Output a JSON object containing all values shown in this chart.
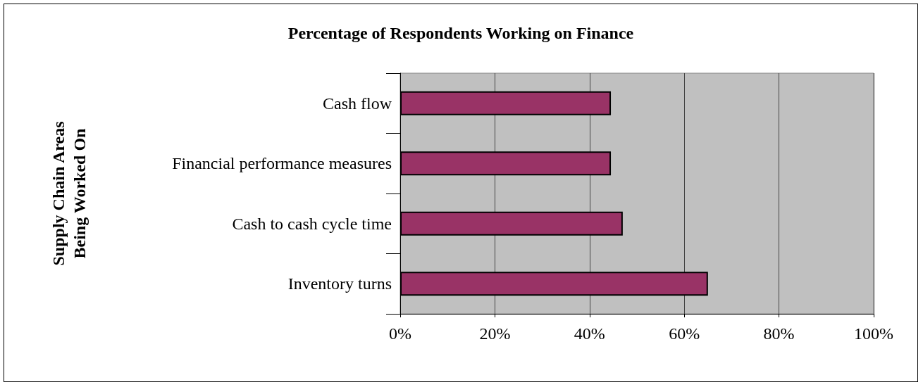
{
  "chart_data": {
    "type": "bar",
    "orientation": "horizontal",
    "title": "Percentage of Respondents Working on Finance",
    "ylabel": "Supply Chain Areas\nBeing Worked On",
    "categories": [
      "Cash flow",
      "Financial performance measures",
      "Cash to cash cycle time",
      "Inventory turns"
    ],
    "values": [
      44.5,
      44.5,
      47,
      65
    ],
    "color": "#993366",
    "xlim": [
      0,
      100
    ],
    "xticks": [
      {
        "value": 0,
        "label": "0%"
      },
      {
        "value": 20,
        "label": "20%"
      },
      {
        "value": 40,
        "label": "40%"
      },
      {
        "value": 60,
        "label": "60%"
      },
      {
        "value": 80,
        "label": "80%"
      },
      {
        "value": 100,
        "label": "100%"
      }
    ],
    "grid": "x"
  }
}
